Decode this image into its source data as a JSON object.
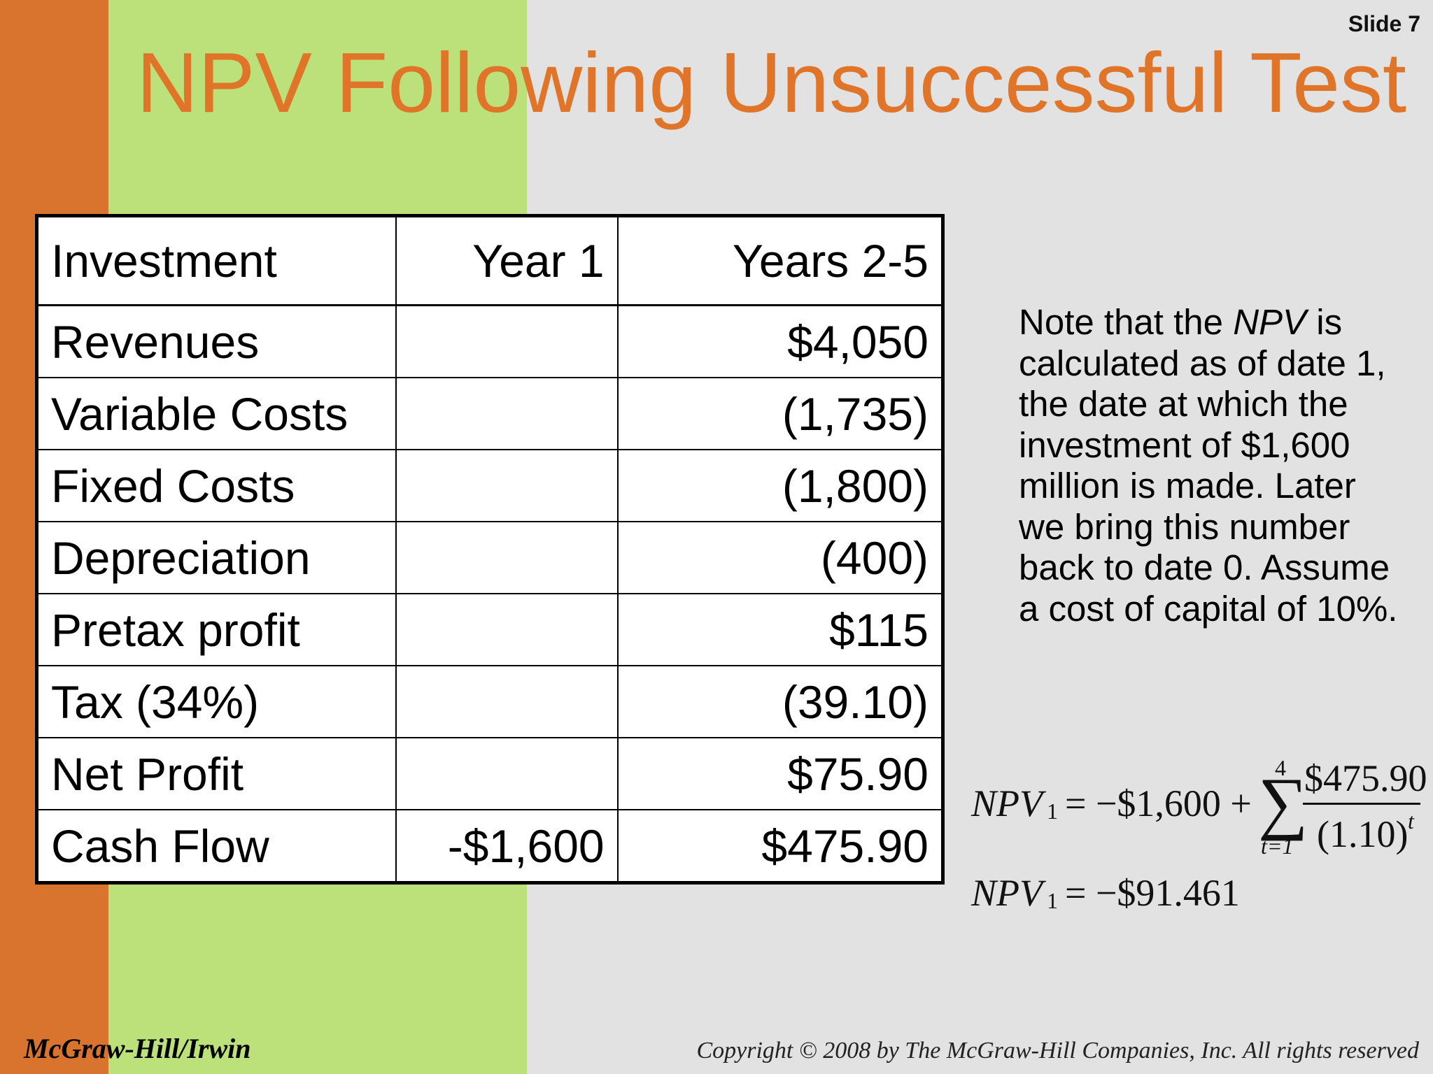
{
  "slide_number": "Slide 7",
  "title": "NPV Following Unsuccessful Test",
  "table": {
    "headers": [
      "Investment",
      "Year 1",
      "Years 2-5"
    ],
    "rows": [
      [
        "Revenues",
        "",
        "$4,050"
      ],
      [
        "Variable Costs",
        "",
        "(1,735)"
      ],
      [
        "Fixed Costs",
        "",
        "(1,800)"
      ],
      [
        "Depreciation",
        "",
        "(400)"
      ],
      [
        "Pretax profit",
        "",
        "$115"
      ],
      [
        "Tax (34%)",
        "",
        "(39.10)"
      ],
      [
        "Net Profit",
        "",
        "$75.90"
      ],
      [
        "Cash Flow",
        "-$1,600",
        "$475.90"
      ]
    ]
  },
  "note": {
    "before": "Note that the ",
    "emphasis": "NPV",
    "after": " is calculated as of date 1, the date at which the investment of $1,600 million is made. Later we bring this number back to date 0. Assume a cost of capital of 10%."
  },
  "formula": {
    "lhs": "NPV",
    "subscript": "1",
    "eq1_rhs": "= −$1,600 +",
    "sum_upper": "4",
    "sum_lower": "t=1",
    "numerator": "$475.90",
    "denominator": "(1.10)",
    "exponent": "t",
    "eq2_rhs": "= −$91.461"
  },
  "footer": {
    "publisher": "McGraw-Hill/Irwin",
    "copyright": "Copyright © 2008 by The McGraw-Hill Companies, Inc. All rights reserved"
  }
}
